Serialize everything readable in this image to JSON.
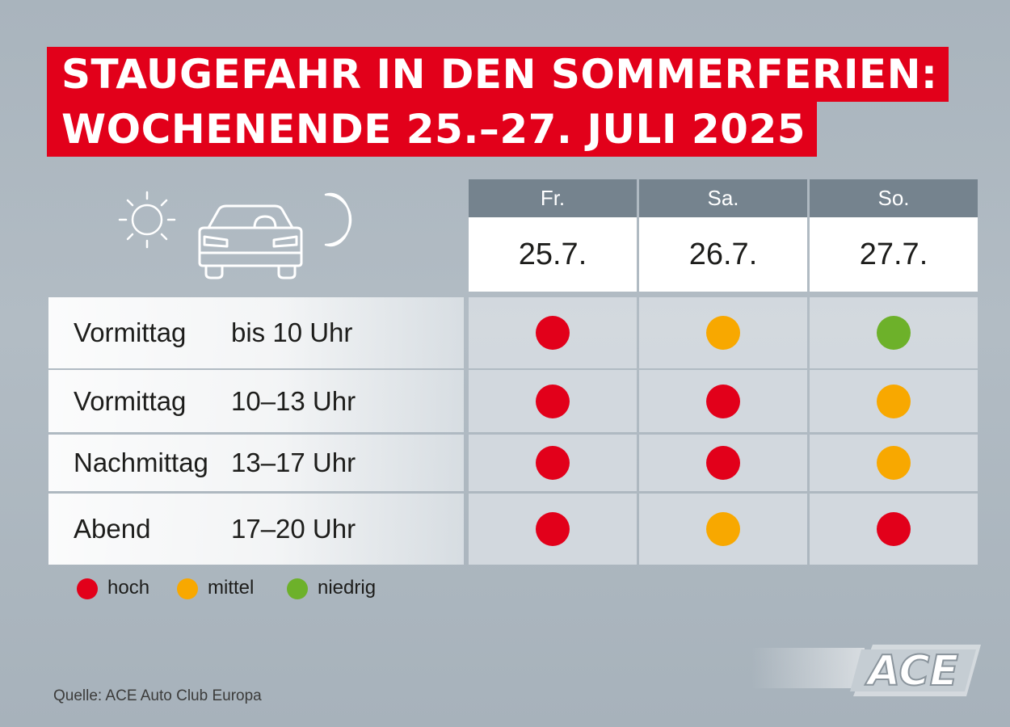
{
  "title": {
    "line1": "STAUGEFAHR IN DEN SOMMERFERIEN:",
    "line2": "WOCHENENDE 25.–27. JULI 2025"
  },
  "icons": [
    "sun-icon",
    "car-icon",
    "moon-icon"
  ],
  "columns": [
    {
      "day": "Fr.",
      "date": "25.7."
    },
    {
      "day": "Sa.",
      "date": "26.7."
    },
    {
      "day": "So.",
      "date": "27.7."
    }
  ],
  "rows": [
    {
      "part": "Vormittag",
      "time": "bis 10 Uhr",
      "levels": [
        "hoch",
        "mittel",
        "niedrig"
      ]
    },
    {
      "part": "Vormittag",
      "time": "10–13 Uhr",
      "levels": [
        "hoch",
        "hoch",
        "mittel"
      ]
    },
    {
      "part": "Nachmittag",
      "time": "13–17 Uhr",
      "levels": [
        "hoch",
        "hoch",
        "mittel"
      ]
    },
    {
      "part": "Abend",
      "time": "17–20 Uhr",
      "levels": [
        "hoch",
        "mittel",
        "hoch"
      ]
    }
  ],
  "legend": [
    {
      "key": "hoch",
      "label": "hoch",
      "color": "#e2001a"
    },
    {
      "key": "mittel",
      "label": "mittel",
      "color": "#f8a800"
    },
    {
      "key": "niedrig",
      "label": "niedrig",
      "color": "#6db12a"
    }
  ],
  "source": "Quelle: ACE Auto Club Europa",
  "logo": "ACE"
}
